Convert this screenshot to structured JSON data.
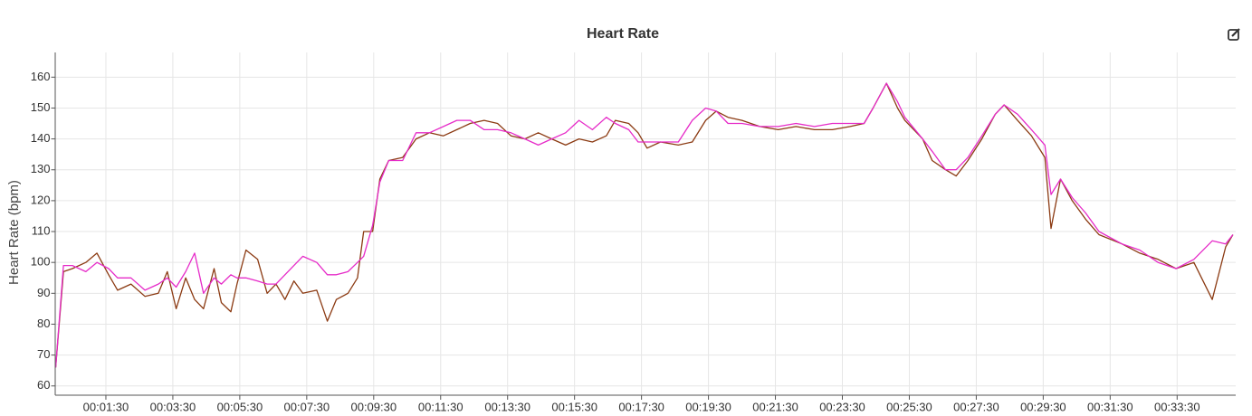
{
  "chart_data": {
    "type": "line",
    "title": "Heart Rate",
    "y_label": "Heart Rate (bpm)",
    "x": [
      0,
      14,
      30,
      54,
      74,
      95,
      111,
      135,
      160,
      184,
      200,
      216,
      233,
      249,
      265,
      284,
      297,
      314,
      325,
      341,
      362,
      379,
      395,
      411,
      427,
      443,
      468,
      487,
      503,
      524,
      541,
      552,
      568,
      581,
      597,
      622,
      646,
      670,
      695,
      719,
      743,
      768,
      792,
      816,
      841,
      865,
      889,
      914,
      938,
      962,
      987,
      1003,
      1027,
      1044,
      1060,
      1084,
      1116,
      1141,
      1165,
      1184,
      1205,
      1230,
      1262,
      1295,
      1327,
      1360,
      1392,
      1424,
      1449,
      1465,
      1489,
      1509,
      1522,
      1554,
      1571,
      1595,
      1614,
      1635,
      1660,
      1684,
      1700,
      1724,
      1749,
      1773,
      1784,
      1801,
      1822,
      1846,
      1870,
      1911,
      1943,
      1976,
      2008,
      2040,
      2073,
      2097,
      2110
    ],
    "series": [
      {
        "color": "#8b3a12",
        "values": [
          66,
          97,
          98,
          100,
          103,
          96,
          91,
          93,
          89,
          90,
          97,
          85,
          95,
          88,
          85,
          98,
          87,
          84,
          93,
          104,
          101,
          90,
          93,
          88,
          94,
          90,
          91,
          81,
          88,
          90,
          95,
          110,
          110,
          127,
          133,
          134,
          140,
          142,
          141,
          143,
          145,
          146,
          145,
          141,
          140,
          142,
          140,
          138,
          140,
          139,
          141,
          146,
          145,
          142,
          137,
          139,
          138,
          139,
          146,
          149,
          147,
          146,
          144,
          143,
          144,
          143,
          143,
          144,
          145,
          150,
          158,
          150,
          146,
          140,
          133,
          130,
          128,
          133,
          140,
          148,
          151,
          146,
          141,
          134,
          111,
          127,
          120,
          114,
          109,
          106,
          103,
          101,
          98,
          100,
          88,
          105,
          109
        ]
      },
      {
        "color": "#e62bc8",
        "values": [
          66,
          99,
          99,
          97,
          100,
          98,
          95,
          95,
          91,
          93,
          95,
          92,
          97,
          103,
          90,
          95,
          93,
          96,
          95,
          95,
          94,
          93,
          93,
          96,
          99,
          102,
          100,
          96,
          96,
          97,
          100,
          102,
          112,
          126,
          133,
          133,
          142,
          142,
          144,
          146,
          146,
          143,
          143,
          142,
          140,
          138,
          140,
          142,
          146,
          143,
          147,
          145,
          143,
          139,
          139,
          139,
          139,
          146,
          150,
          149,
          145,
          145,
          144,
          144,
          145,
          144,
          145,
          145,
          145,
          150,
          158,
          152,
          147,
          140,
          136,
          130,
          130,
          134,
          141,
          148,
          151,
          148,
          143,
          138,
          122,
          127,
          121,
          116,
          110,
          106,
          104,
          100,
          98,
          101,
          107,
          106,
          109
        ]
      }
    ],
    "xlim": [
      0,
      2115
    ],
    "xticks": [
      {
        "value": 90,
        "label": "00:01:30"
      },
      {
        "value": 210,
        "label": "00:03:30"
      },
      {
        "value": 330,
        "label": "00:05:30"
      },
      {
        "value": 450,
        "label": "00:07:30"
      },
      {
        "value": 570,
        "label": "00:09:30"
      },
      {
        "value": 690,
        "label": "00:11:30"
      },
      {
        "value": 810,
        "label": "00:13:30"
      },
      {
        "value": 930,
        "label": "00:15:30"
      },
      {
        "value": 1050,
        "label": "00:17:30"
      },
      {
        "value": 1170,
        "label": "00:19:30"
      },
      {
        "value": 1290,
        "label": "00:21:30"
      },
      {
        "value": 1410,
        "label": "00:23:30"
      },
      {
        "value": 1530,
        "label": "00:25:30"
      },
      {
        "value": 1650,
        "label": "00:27:30"
      },
      {
        "value": 1770,
        "label": "00:29:30"
      },
      {
        "value": 1890,
        "label": "00:31:30"
      },
      {
        "value": 2010,
        "label": "00:33:30"
      }
    ],
    "ylim": [
      57,
      168
    ],
    "yticks": [
      60,
      70,
      80,
      90,
      100,
      110,
      120,
      130,
      140,
      150,
      160
    ],
    "grid": true
  }
}
